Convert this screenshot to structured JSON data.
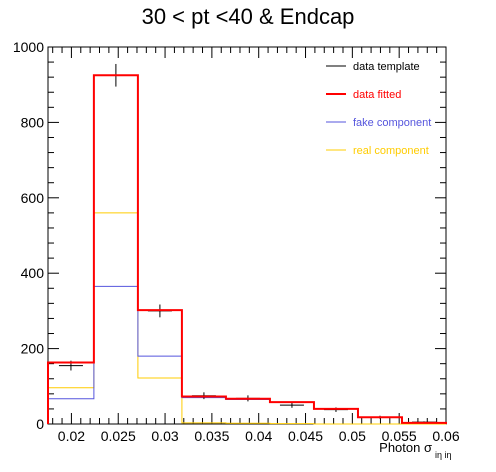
{
  "chart_data": {
    "type": "histogram",
    "title": "30 < pt <40 & Endcap",
    "xlabel": "Photon σ",
    "xlabel_sub": "iη iη",
    "ylabel": "",
    "xlim": [
      0.0175,
      0.06
    ],
    "ylim": [
      0,
      1000
    ],
    "grid": false,
    "legend_position": "top-right",
    "bin_edges": [
      0.0175,
      0.0224,
      0.0271,
      0.0318,
      0.0365,
      0.0412,
      0.0459,
      0.0506,
      0.0553,
      0.06
    ],
    "x_ticks": [
      0.02,
      0.025,
      0.03,
      0.035,
      0.04,
      0.045,
      0.05,
      0.055,
      0.06
    ],
    "x_tick_labels": [
      "0.02",
      "0.025",
      "0.03",
      "0.035",
      "0.04",
      "0.045",
      "0.05",
      "0.055",
      "0.06"
    ],
    "y_ticks": [
      0,
      200,
      400,
      600,
      800,
      1000
    ],
    "y_tick_labels": [
      "0",
      "200",
      "400",
      "600",
      "800",
      "1000"
    ],
    "series": [
      {
        "name": "data template",
        "color": "#000000",
        "style": "points",
        "values": [
          155,
          925,
          300,
          75,
          68,
          50,
          38,
          18,
          5
        ],
        "errors": [
          13,
          30,
          17,
          9,
          8,
          7,
          6,
          4,
          2
        ]
      },
      {
        "name": "data fitted",
        "color": "#ff0000",
        "style": "step",
        "values": [
          163,
          925,
          302,
          73,
          67,
          58,
          40,
          18,
          3
        ]
      },
      {
        "name": "fake component",
        "color": "#5555dd",
        "style": "step",
        "values": [
          67,
          365,
          180,
          70,
          65,
          57,
          40,
          18,
          3
        ]
      },
      {
        "name": "real component",
        "color": "#ffcc00",
        "style": "step",
        "values": [
          96,
          560,
          122,
          3,
          2,
          1,
          0,
          0,
          0
        ]
      }
    ]
  }
}
